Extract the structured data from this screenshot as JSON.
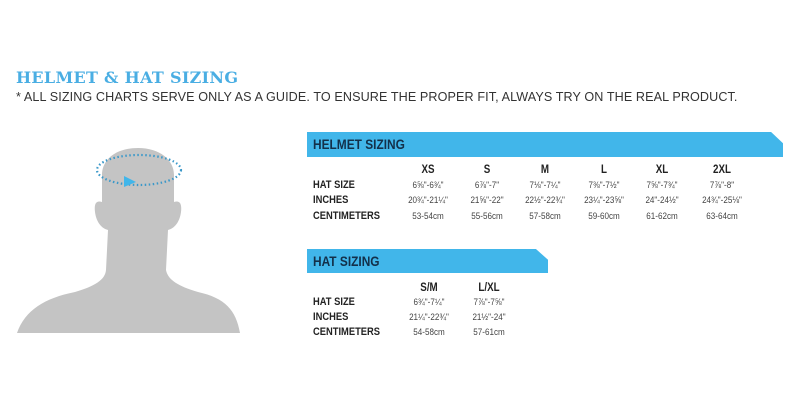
{
  "title": "HELMET & HAT SIZING",
  "note": "* ALL SIZING CHARTS SERVE ONLY AS A GUIDE. TO ENSURE THE PROPER FIT, ALWAYS TRY ON THE REAL PRODUCT.",
  "accent_color": "#41b6ea",
  "illustration": {
    "icon": "head-measurement-icon"
  },
  "helmet": {
    "heading": "HELMET SIZING",
    "sizes": [
      "XS",
      "S",
      "M",
      "L",
      "XL",
      "2XL"
    ],
    "rows": [
      {
        "label": "HAT SIZE",
        "values": [
          "6⅝\"-6¾\"",
          "6⅞\"-7\"",
          "7⅛\"-7¼\"",
          "7⅜\"-7½\"",
          "7⅝\"-7¾\"",
          "7⅞\"-8\""
        ]
      },
      {
        "label": "INCHES",
        "values": [
          "20¾\"-21¼\"",
          "21⅝\"-22\"",
          "22½\"-22¾\"",
          "23¼\"-23⅝\"",
          "24\"-24½\"",
          "24¾\"-25⅛\""
        ]
      },
      {
        "label": "CENTIMETERS",
        "values": [
          "53-54cm",
          "55-56cm",
          "57-58cm",
          "59-60cm",
          "61-62cm",
          "63-64cm"
        ]
      }
    ]
  },
  "hat": {
    "heading": "HAT SIZING",
    "sizes": [
      "S/M",
      "L/XL"
    ],
    "rows": [
      {
        "label": "HAT SIZE",
        "values": [
          "6¾\"-7¼\"",
          "7⅞\"-7⅝\""
        ]
      },
      {
        "label": "INCHES",
        "values": [
          "21¼\"-22¾\"",
          "21½\"-24\""
        ]
      },
      {
        "label": "CENTIMETERS",
        "values": [
          "54-58cm",
          "57-61cm"
        ]
      }
    ]
  }
}
